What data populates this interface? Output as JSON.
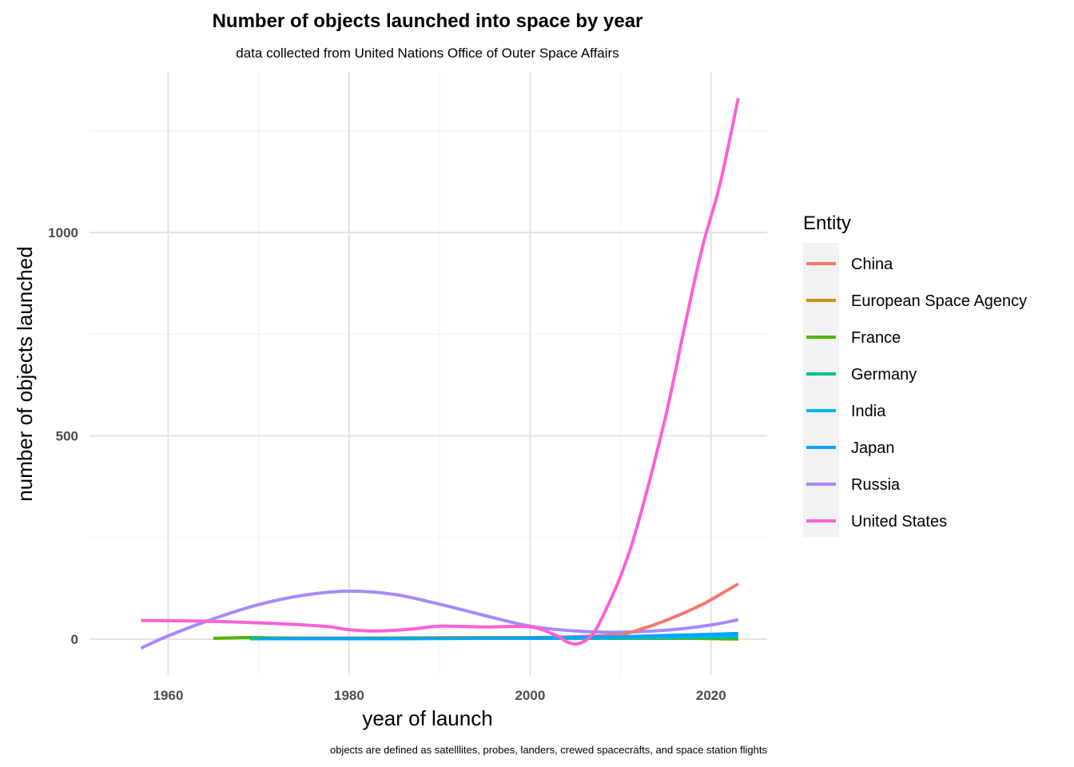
{
  "chart_data": {
    "type": "line",
    "title": "Number of objects launched into space by year",
    "subtitle": "data collected from United Nations Office of Outer Space Affairs",
    "xlabel": "year of launch",
    "ylabel": "number of objects launched",
    "caption": "objects are defined as satelllites, probes, landers, crewed spacecrafts, and space station flights",
    "xlim": [
      1957,
      2023
    ],
    "ylim": [
      -60,
      1390
    ],
    "x_ticks": [
      1960,
      1980,
      2000,
      2020
    ],
    "y_ticks": [
      0,
      500,
      1000
    ],
    "x_tick_labels": [
      "1960",
      "1980",
      "2000",
      "2020"
    ],
    "y_tick_labels": [
      "0",
      "500",
      "1000"
    ],
    "grid": true,
    "legend_title": "Entity",
    "legend_position": "right",
    "series": [
      {
        "name": "China",
        "color": "#F8766D",
        "x": [
          1970,
          1980,
          1990,
          2000,
          2005,
          2010,
          2013,
          2016,
          2019,
          2021,
          2023
        ],
        "y": [
          3,
          3,
          3,
          4,
          6,
          12,
          30,
          55,
          85,
          110,
          136
        ]
      },
      {
        "name": "European Space Agency",
        "color": "#C49A00",
        "x": [
          1975,
          1985,
          1995,
          2005,
          2015,
          2023
        ],
        "y": [
          2,
          3,
          4,
          4,
          3,
          0
        ]
      },
      {
        "name": "France",
        "color": "#53B400",
        "x": [
          1965,
          1969,
          1975,
          1985,
          1995,
          2005,
          2015,
          2023
        ],
        "y": [
          2,
          4,
          2,
          2,
          2,
          2,
          2,
          2
        ]
      },
      {
        "name": "Germany",
        "color": "#00C094",
        "x": [
          1969,
          1980,
          1990,
          2000,
          2010,
          2023
        ],
        "y": [
          1,
          1,
          2,
          2,
          3,
          5
        ]
      },
      {
        "name": "India",
        "color": "#00B6EB",
        "x": [
          1975,
          1985,
          1995,
          2005,
          2015,
          2023
        ],
        "y": [
          1,
          1,
          2,
          3,
          5,
          8
        ]
      },
      {
        "name": "Japan",
        "color": "#06A4FF",
        "x": [
          1970,
          1980,
          1990,
          2000,
          2010,
          2015,
          2020,
          2023
        ],
        "y": [
          1,
          2,
          2,
          3,
          6,
          9,
          12,
          14
        ]
      },
      {
        "name": "Russia",
        "color": "#A58AFF",
        "x": [
          1957,
          1960,
          1965,
          1970,
          1975,
          1980,
          1985,
          1990,
          1995,
          2000,
          2005,
          2010,
          2015,
          2020,
          2023
        ],
        "y": [
          -22,
          8,
          50,
          85,
          108,
          118,
          110,
          86,
          58,
          32,
          20,
          17,
          22,
          35,
          48
        ]
      },
      {
        "name": "United States",
        "color": "#FB61D7",
        "x": [
          1957,
          1962,
          1966,
          1970,
          1975,
          1978,
          1980,
          1983,
          1987,
          1990,
          1995,
          2000,
          2003,
          2004,
          2005,
          2006,
          2007,
          2008,
          2010,
          2012,
          2015,
          2017,
          2019,
          2021,
          2023
        ],
        "y": [
          46,
          45,
          43,
          40,
          35,
          30,
          23,
          20,
          25,
          32,
          30,
          30,
          8,
          -6,
          -12,
          -5,
          15,
          55,
          155,
          290,
          550,
          760,
          960,
          1120,
          1330
        ]
      }
    ]
  }
}
